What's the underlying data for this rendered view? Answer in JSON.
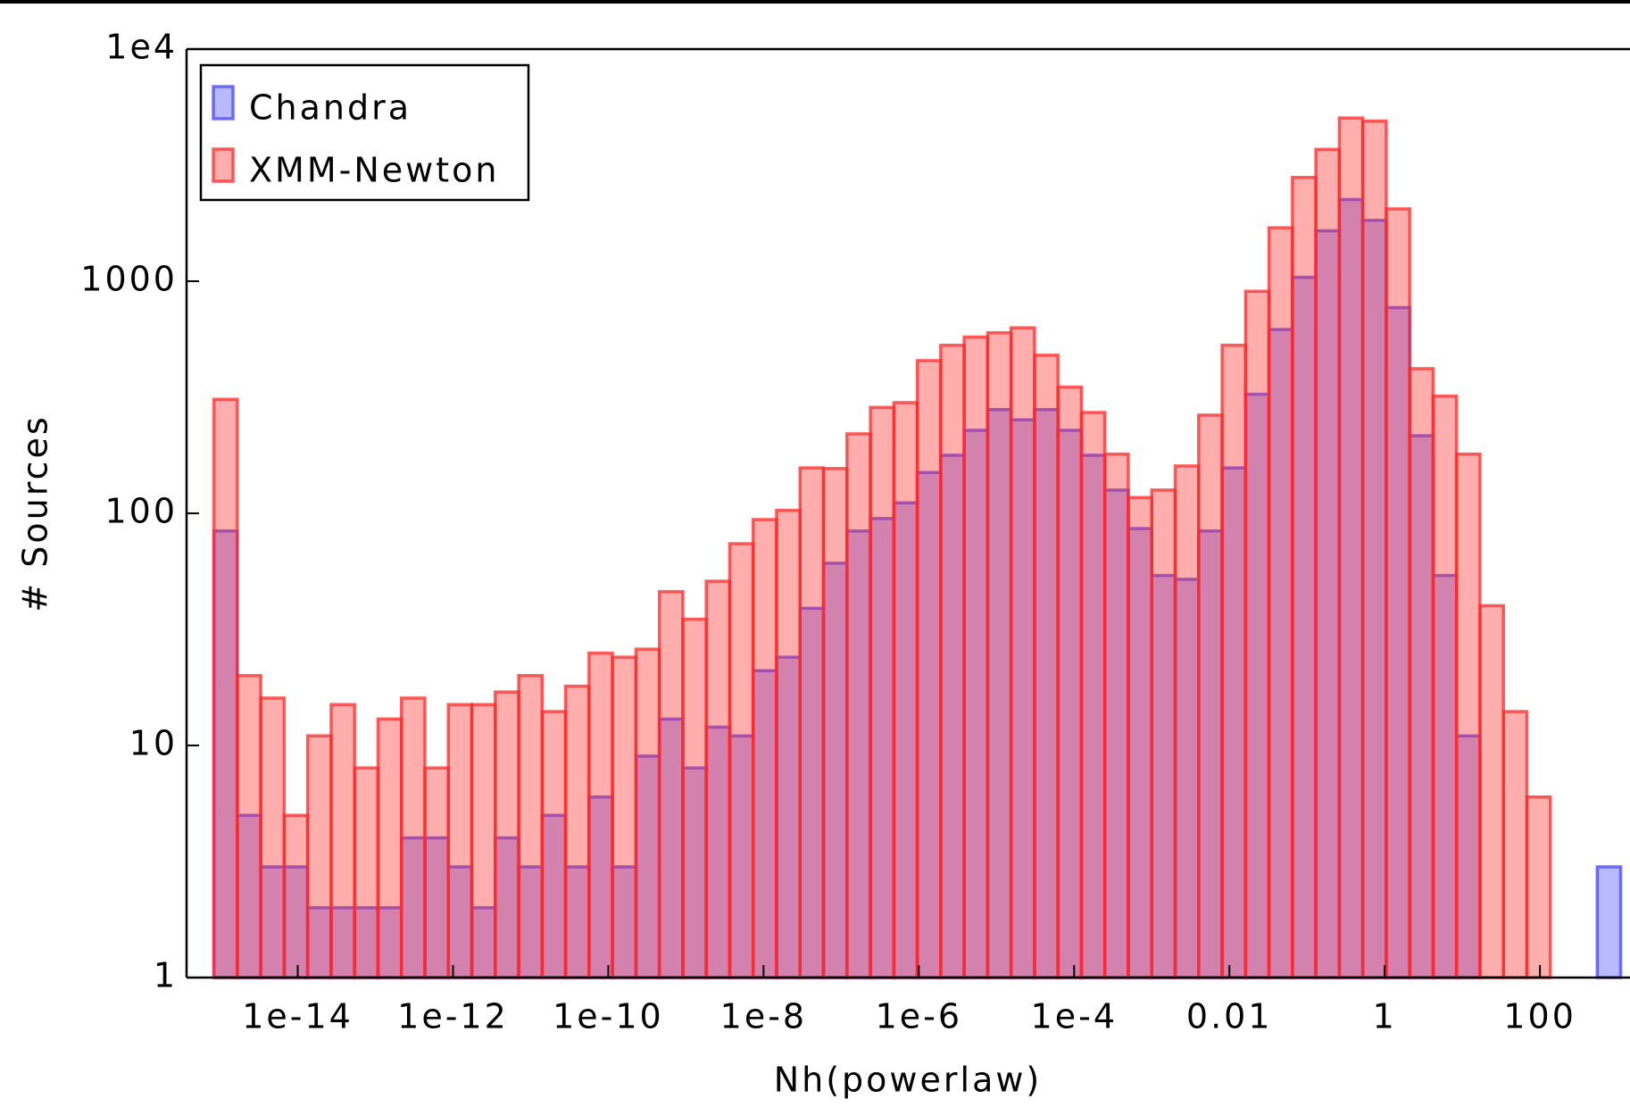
{
  "chart_data": {
    "type": "histogram",
    "x_label": "Nh(powerlaw)",
    "y_label": "# Sources",
    "log_x": true,
    "log_y": true,
    "legend": "upper left",
    "xlim": [
      3.7e-16,
      1445
    ],
    "ylim": [
      1,
      10000
    ],
    "xticks": [
      {
        "value": 1e-14,
        "label": "1e-14"
      },
      {
        "value": 1e-12,
        "label": "1e-12"
      },
      {
        "value": 1e-10,
        "label": "1e-10"
      },
      {
        "value": 1e-08,
        "label": "1e-8"
      },
      {
        "value": 1e-06,
        "label": "1e-6"
      },
      {
        "value": 0.0001,
        "label": "1e-4"
      },
      0.01,
      1,
      100
    ],
    "yticks": [
      1,
      10,
      100,
      1000,
      {
        "value": 10000,
        "label": "1e4"
      }
    ],
    "bins": [
      8.318e-16,
      1.667e-15,
      3.342e-15,
      6.699e-15,
      1.343e-14,
      2.692e-14,
      5.395e-14,
      1.081e-13,
      2.168e-13,
      4.345e-13,
      8.71e-13,
      1.746e-12,
      3.499e-12,
      7.015e-12,
      1.406e-11,
      2.818e-11,
      5.649e-11,
      1.132e-10,
      2.27e-10,
      4.55e-10,
      9.12e-10,
      1.828e-09,
      3.664e-09,
      7.345e-09,
      1.472e-08,
      2.951e-08,
      5.916e-08,
      1.186e-07,
      2.377e-07,
      4.764e-07,
      9.55e-07,
      1.914e-06,
      3.837e-06,
      7.691e-06,
      1.542e-05,
      3.09e-05,
      6.194e-05,
      0.0001242,
      0.0002489,
      0.0004989,
      0.001,
      0.002005,
      0.004018,
      0.008054,
      0.01614,
      0.03236,
      0.06486,
      0.13,
      0.2606,
      0.5224,
      1.047,
      2.099,
      4.207,
      8.433,
      16.9,
      33.88,
      67.92,
      136.1,
      272.9,
      547.0,
      1096
    ],
    "series": [
      {
        "name": "Chandra",
        "color": "#4646ff",
        "values": [
          84,
          5,
          3,
          3,
          2,
          2,
          2,
          2,
          4,
          4,
          3,
          2,
          4,
          3,
          5,
          3,
          6,
          3,
          9,
          13,
          8,
          12,
          11,
          21,
          24,
          39,
          61,
          84,
          95,
          111,
          150,
          178,
          228,
          280,
          253,
          280,
          228,
          178,
          126,
          86,
          54,
          52,
          84,
          157,
          326,
          620,
          1040,
          1650,
          2250,
          1830,
          770,
          216,
          54,
          11,
          0,
          0,
          0,
          0,
          1,
          3
        ]
      },
      {
        "name": "XMM-Newton",
        "color": "#ff2a2a",
        "values": [
          310,
          20,
          16,
          5,
          11,
          15,
          8,
          13,
          16,
          8,
          15,
          15,
          17,
          20,
          14,
          18,
          25,
          24,
          26,
          46,
          35,
          51,
          74,
          94,
          103,
          157,
          156,
          220,
          286,
          300,
          455,
          530,
          575,
          600,
          630,
          480,
          350,
          272,
          180,
          117,
          126,
          160,
          265,
          530,
          905,
          1700,
          2800,
          3700,
          5050,
          4900,
          2050,
          420,
          320,
          180,
          40,
          14,
          6,
          0,
          0,
          0
        ]
      }
    ]
  }
}
